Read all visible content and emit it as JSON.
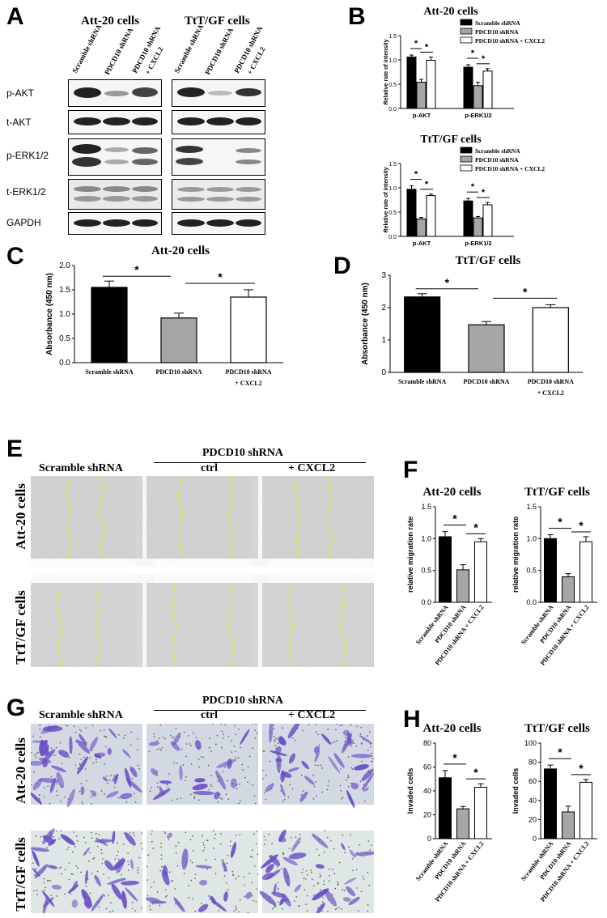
{
  "panels": {
    "A": "A",
    "B": "B",
    "C": "C",
    "D": "D",
    "E": "E",
    "F": "F",
    "G": "G",
    "H": "H"
  },
  "western": {
    "group1": "Att-20 cells",
    "group2": "TtT/GF cells",
    "lanes": [
      "Scramble shRNA",
      "PDCD10 shRNA",
      "PDCD10 shRNA",
      "+ CXCL2"
    ],
    "rows": [
      "p-AKT",
      "t-AKT",
      "p-ERK1/2",
      "t-ERK1/2",
      "GAPDH"
    ]
  },
  "images": {
    "pdcd10_header": "PDCD10 shRNA",
    "col_scramble": "Scramble shRNA",
    "col_ctrl": "ctrl",
    "col_cxcl2": "+ CXCL2",
    "row_att": "Att-20 cells",
    "row_ttt": "TtT/GF cells"
  },
  "colors": {
    "black_bar": "#000000",
    "grey_bar": "#a6a6a6",
    "white_bar": "#ffffff",
    "scratch_line": "#e8e83a",
    "crystal": "#6a4fc4",
    "bg_micro": "#c9c9c9",
    "bg_transwell": "#dfe6e6"
  },
  "chart_data": [
    {
      "id": "B1",
      "type": "bar",
      "title": "Att-20 cells",
      "ylabel": "Relative rate of intensity",
      "categories": [
        "p-AKT",
        "p-ERK1/2"
      ],
      "ylim": [
        0,
        1.5
      ],
      "yticks": [
        "0.0",
        "0.5",
        "1.0",
        "1.5"
      ],
      "series": [
        {
          "name": "Scramble shRNA",
          "values": [
            1.06,
            0.85
          ],
          "errors": [
            0.04,
            0.05
          ]
        },
        {
          "name": "PDCD10 shRNA",
          "values": [
            0.54,
            0.47
          ],
          "errors": [
            0.06,
            0.07
          ]
        },
        {
          "name": "PDCD10 shRNA + CXCL2",
          "values": [
            0.99,
            0.77
          ],
          "errors": [
            0.07,
            0.05
          ]
        }
      ],
      "significance": [
        "*",
        "*",
        "*",
        "*"
      ]
    },
    {
      "id": "B2",
      "type": "bar",
      "title": "TtT/GF cells",
      "ylabel": "Relative rate of intensity",
      "categories": [
        "p-AKT",
        "p-ERK1/2"
      ],
      "ylim": [
        0,
        1.5
      ],
      "yticks": [
        "0.0",
        "0.5",
        "1.0",
        "1.5"
      ],
      "series": [
        {
          "name": "Scramble shRNA",
          "values": [
            0.97,
            0.73
          ],
          "errors": [
            0.07,
            0.05
          ]
        },
        {
          "name": "PDCD10 shRNA",
          "values": [
            0.36,
            0.38
          ],
          "errors": [
            0.03,
            0.03
          ]
        },
        {
          "name": "PDCD10 shRNA + CXCL2",
          "values": [
            0.84,
            0.65
          ],
          "errors": [
            0.03,
            0.05
          ]
        }
      ],
      "significance": [
        "*",
        "*",
        "*",
        "*"
      ]
    },
    {
      "id": "C",
      "type": "bar",
      "title": "Att-20 cells",
      "ylabel": "Absorbance (450 nm)",
      "categories": [
        "Scramble shRNA",
        "PDCD10 shRNA",
        "PDCD10 shRNA + CXCL2"
      ],
      "values": [
        1.55,
        0.92,
        1.35
      ],
      "errors": [
        0.13,
        0.1,
        0.15
      ],
      "ylim": [
        0,
        2.0
      ],
      "yticks": [
        "0.0",
        "0.5",
        "1.0",
        "1.5",
        "2.0"
      ],
      "significance": [
        "*",
        "*"
      ]
    },
    {
      "id": "D",
      "type": "bar",
      "title": "TtT/GF cells",
      "ylabel": "Absorbance (450 nm)",
      "categories": [
        "Scramble shRNA",
        "PDCD10 shRNA",
        "PDCD10 shRNA + CXCL2"
      ],
      "values": [
        2.33,
        1.47,
        2.0
      ],
      "errors": [
        0.1,
        0.1,
        0.09
      ],
      "ylim": [
        0,
        3
      ],
      "yticks": [
        "0",
        "1",
        "2",
        "3"
      ],
      "significance": [
        "*",
        "*"
      ]
    },
    {
      "id": "F1",
      "type": "bar",
      "title": "Att-20 cells",
      "ylabel": "relative migration rate",
      "categories": [
        "Scramble shRNA",
        "PDCD10 shRNA",
        "PDCD10 shRNA + CXCL2"
      ],
      "values": [
        1.03,
        0.51,
        0.95
      ],
      "errors": [
        0.08,
        0.08,
        0.05
      ],
      "ylim": [
        0,
        1.5
      ],
      "yticks": [
        "0.0",
        "0.5",
        "1.0",
        "1.5"
      ],
      "significance": [
        "*",
        "*"
      ]
    },
    {
      "id": "F2",
      "type": "bar",
      "title": "TtT/GF cells",
      "ylabel": "relative migration rate",
      "categories": [
        "Scramble shRNA",
        "PDCD10 shRNA",
        "PDCD10 shRNA + CXCL2"
      ],
      "values": [
        1.0,
        0.4,
        0.95
      ],
      "errors": [
        0.06,
        0.05,
        0.08
      ],
      "ylim": [
        0,
        1.5
      ],
      "yticks": [
        "0.0",
        "0.5",
        "1.0",
        "1.5"
      ],
      "significance": [
        "*",
        "*"
      ]
    },
    {
      "id": "H1",
      "type": "bar",
      "title": "Att-20 cells",
      "ylabel": "Invaded cells",
      "categories": [
        "Scramble shRNA",
        "PDCD10 shRNA",
        "PDCD10 shRNA + CXCL2"
      ],
      "values": [
        51,
        25,
        43
      ],
      "errors": [
        6,
        2,
        3
      ],
      "ylim": [
        0,
        80
      ],
      "yticks": [
        "0",
        "20",
        "40",
        "60",
        "80"
      ],
      "significance": [
        "*",
        "*"
      ]
    },
    {
      "id": "H2",
      "type": "bar",
      "title": "TtT/GF cells",
      "ylabel": "Invaded cells",
      "categories": [
        "Scramble shRNA",
        "PDCD10 shRNA",
        "PDCD10 shRNA + CXCL2"
      ],
      "values": [
        73,
        28,
        59
      ],
      "errors": [
        4,
        6,
        3
      ],
      "ylim": [
        0,
        100
      ],
      "yticks": [
        "0",
        "20",
        "40",
        "60",
        "80",
        "100"
      ],
      "significance": [
        "*",
        "*"
      ]
    }
  ]
}
